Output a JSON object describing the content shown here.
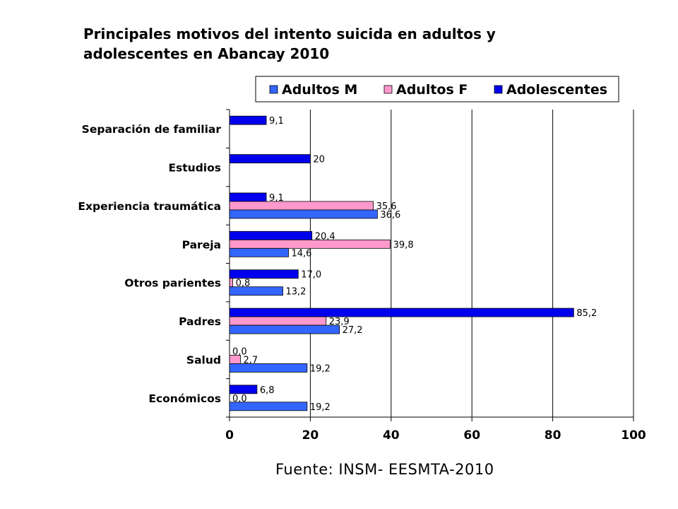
{
  "title": {
    "line1": "Principales motivos del intento suicida en adultos y",
    "line2": "adolescentes en Abancay 2010"
  },
  "source": "Fuente: INSM- EESMTA-2010",
  "chart_data": {
    "type": "bar",
    "orientation": "horizontal",
    "title": "Principales motivos del intento suicida en adultos y adolescentes en Abancay 2010",
    "categories": [
      "Separación de familiar",
      "Estudios",
      "Experiencia traumática",
      "Pareja",
      "Otros parientes",
      "Padres",
      "Salud",
      "Económicos"
    ],
    "series": [
      {
        "name": "Adolescentes",
        "color": "#0000ee",
        "values": [
          9.1,
          20,
          9.1,
          20.4,
          17.0,
          85.2,
          0.0,
          6.8
        ],
        "labels": [
          "9,1",
          "20",
          "9,1",
          "20,4",
          "17,0",
          "85,2",
          "0,0",
          "6,8"
        ]
      },
      {
        "name": "Adultos F",
        "color": "#ff99cc",
        "values": [
          null,
          null,
          35.6,
          39.8,
          0.8,
          23.9,
          2.7,
          0.0
        ],
        "labels": [
          "",
          "",
          "35,6",
          "39,8",
          "0,8",
          "23,9",
          "2,7",
          "0,0"
        ]
      },
      {
        "name": "Adultos M",
        "color": "#3366ff",
        "values": [
          null,
          null,
          36.6,
          14.6,
          13.2,
          27.2,
          19.2,
          19.2
        ],
        "labels": [
          "",
          "",
          "36,6",
          "14,6",
          "13,2",
          "27,2",
          "19,2",
          "19,2"
        ]
      }
    ],
    "legend_order": [
      "Adultos M",
      "Adultos F",
      "Adolescentes"
    ],
    "xlim": [
      0,
      100
    ],
    "xticks": [
      "0",
      "20",
      "40",
      "60",
      "80",
      "100"
    ],
    "grid": true,
    "legend_position": "top-right"
  }
}
